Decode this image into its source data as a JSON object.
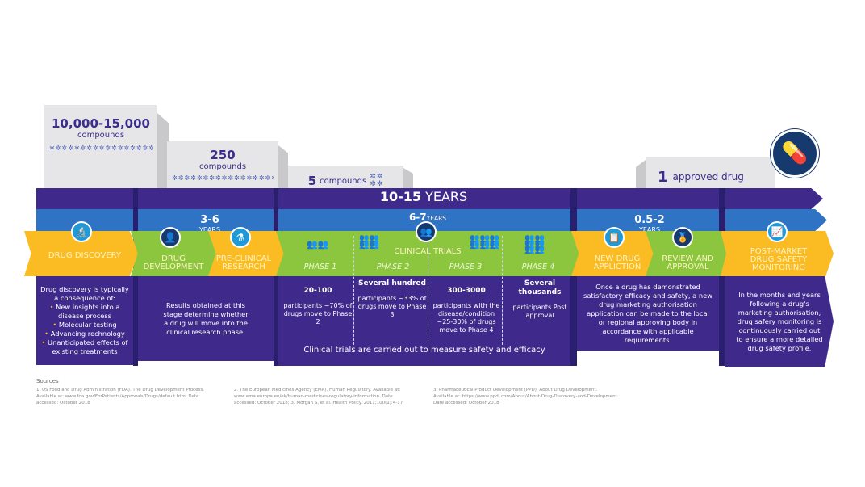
{
  "funnel": [
    {
      "count": "10,000-15,000",
      "unit": "compounds"
    },
    {
      "count": "250",
      "unit": "compounds"
    },
    {
      "count": "5",
      "unit": "compounds"
    },
    {
      "count": "1",
      "unit": "approved drug"
    }
  ],
  "timelines": {
    "total": {
      "value": "10-15",
      "unit": "YEARS"
    },
    "early": {
      "value": "3-6",
      "unit": "YEARS"
    },
    "clinical": {
      "value": "6-7",
      "unit": "YEARS"
    },
    "approval": {
      "value": "0.5-2",
      "unit": "YEARS"
    }
  },
  "stages": [
    {
      "label": "DRUG DISCOVERY",
      "icon": "microscope-icon"
    },
    {
      "label": "DRUG DEVELOPMENT",
      "icon": "scientist-icon"
    },
    {
      "label": "PRE-CLINICAL RESEARCH",
      "icon": "lab-icon"
    },
    {
      "label": "CLINICAL TRIALS",
      "icon": "group-icon"
    },
    {
      "label": "NEW DRUG APPLICTION",
      "icon": "clipboard-icon"
    },
    {
      "label": "REVIEW AND APPROVAL",
      "icon": "award-icon"
    },
    {
      "label": "POST-MARKET DRUG SAFETY MONITORING",
      "icon": "chart-line-icon"
    }
  ],
  "discovery": {
    "intro": "Drug discovery is typically a consequence of:",
    "bullets": [
      "New insights into a disease process",
      "Molecular testing",
      "Advancing rechnology",
      "Unanticipated effects of existing treatments"
    ]
  },
  "development_text": "Results obtained at this stage determine whether a drug will move into the clinical research phase.",
  "phases": [
    {
      "name": "PHASE 1",
      "count": "20-100",
      "text": "participants ~70% of drugs move to Phase 2"
    },
    {
      "name": "PHASE 2",
      "count": "Several hundred",
      "text": "participants ~33% of drugs move to Phase 3"
    },
    {
      "name": "PHASE 3",
      "count": "300-3000",
      "text": "participants with the disease/condition ~25-30% of drugs move to Phase 4"
    },
    {
      "name": "PHASE 4",
      "count": "Several thousands",
      "text": "participants Post approval"
    }
  ],
  "clinical_footer": "Clinical trials are carried out to measure safety and efficacy",
  "approval_text": "Once a drug has demonstrated satisfactory efficacy and safety, a new drug marketing authorisation application can be made to the local or regional approving body in accordance with applicable requirements.",
  "postmarket_text": "In the months and years following a drug's marketing authorisation, drug safery monitoring is continuously carried out to ensure a more detailed drug safety profile.",
  "sources": {
    "title": "Sources",
    "items": [
      "1. US Food and Drug Administration (FDA). The Drug Development Process. Available at: www.fda.gov/ForPatients/Approvals/Drugs/default.htm. Date accessed: October 2018",
      "2. The European Medicines Agency (EMA). Human Regulatory. Available at: www.ema.europa.eu/ek/human-medicines-regulatory-information. Date accessed: October 2018; 3. Morgan S, et al. Health Policy. 2011;100(1):4-17",
      "3. Pharmaceutical Product Development (PPD). About Drug Development. Available at: https://www.ppdi.com/About/About-Drug-Discovery-and-Development. Date accessed: October 2018"
    ]
  },
  "colors": {
    "purple": "#3f2a8c",
    "blue": "#2f73c4",
    "yellow": "#fbbc23",
    "green": "#8cc63f",
    "navy": "#163a6e"
  }
}
